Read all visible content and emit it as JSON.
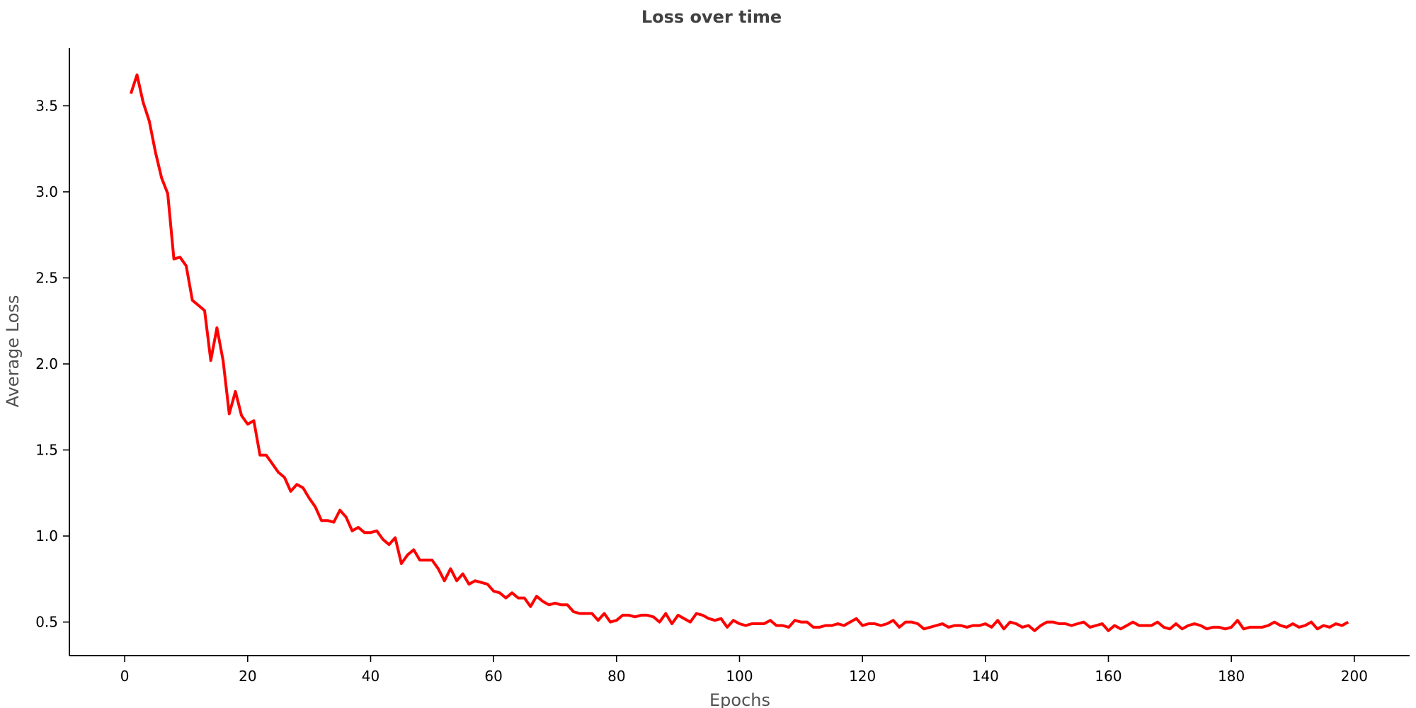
{
  "chart_data": {
    "type": "line",
    "title": "Loss over time",
    "xlabel": "Epochs",
    "ylabel": "Average Loss",
    "xlim": [
      -9,
      209
    ],
    "ylim": [
      0.305,
      3.835
    ],
    "xticks": [
      0,
      20,
      40,
      60,
      80,
      100,
      120,
      140,
      160,
      180,
      200
    ],
    "xtick_labels": [
      "0",
      "20",
      "40",
      "60",
      "80",
      "100",
      "120",
      "140",
      "160",
      "180",
      "200"
    ],
    "yticks": [
      0.5,
      1.0,
      1.5,
      2.0,
      2.5,
      3.0,
      3.5
    ],
    "ytick_labels": [
      "0.5",
      "1.0",
      "1.5",
      "2.0",
      "2.5",
      "3.0",
      "3.5"
    ],
    "grid": false,
    "line_color": "#ff0000",
    "series": [
      {
        "x": [
          1,
          2,
          3,
          4,
          5,
          6,
          7,
          8,
          9,
          10,
          11,
          12,
          13,
          14,
          15,
          16,
          17,
          18,
          19,
          20,
          21,
          22,
          23,
          24,
          25,
          26,
          27,
          28,
          29,
          30,
          31,
          32,
          33,
          34,
          35,
          36,
          37,
          38,
          39,
          40,
          41,
          42,
          43,
          44,
          45,
          46,
          47,
          48,
          49,
          50,
          51,
          52,
          53,
          54,
          55,
          56,
          57,
          58,
          59,
          60,
          61,
          62,
          63,
          64,
          65,
          66,
          67,
          68,
          69,
          70,
          71,
          72,
          73,
          74,
          75,
          76,
          77,
          78,
          79,
          80,
          81,
          82,
          83,
          84,
          85,
          86,
          87,
          88,
          89,
          90,
          91,
          92,
          93,
          94,
          95,
          96,
          97,
          98,
          99,
          100,
          101,
          102,
          103,
          104,
          105,
          106,
          107,
          108,
          109,
          110,
          111,
          112,
          113,
          114,
          115,
          116,
          117,
          118,
          119,
          120,
          121,
          122,
          123,
          124,
          125,
          126,
          127,
          128,
          129,
          130,
          131,
          132,
          133,
          134,
          135,
          136,
          137,
          138,
          139,
          140,
          141,
          142,
          143,
          144,
          145,
          146,
          147,
          148,
          149,
          150,
          151,
          152,
          153,
          154,
          155,
          156,
          157,
          158,
          159,
          160,
          161,
          162,
          163,
          164,
          165,
          166,
          167,
          168,
          169,
          170,
          171,
          172,
          173,
          174,
          175,
          176,
          177,
          178,
          179,
          180,
          181,
          182,
          183,
          184,
          185,
          186,
          187,
          188,
          189,
          190,
          191,
          192,
          193,
          194,
          195,
          196,
          197,
          198,
          199
        ],
        "values": [
          3.57,
          3.68,
          3.52,
          3.41,
          3.23,
          3.08,
          2.99,
          2.61,
          2.62,
          2.57,
          2.37,
          2.34,
          2.31,
          2.02,
          2.21,
          2.02,
          1.71,
          1.84,
          1.7,
          1.65,
          1.67,
          1.47,
          1.47,
          1.42,
          1.37,
          1.34,
          1.26,
          1.3,
          1.28,
          1.22,
          1.17,
          1.09,
          1.09,
          1.08,
          1.15,
          1.11,
          1.03,
          1.05,
          1.02,
          1.02,
          1.03,
          0.98,
          0.95,
          0.99,
          0.84,
          0.89,
          0.92,
          0.86,
          0.86,
          0.86,
          0.81,
          0.74,
          0.81,
          0.74,
          0.78,
          0.72,
          0.74,
          0.73,
          0.72,
          0.68,
          0.67,
          0.64,
          0.67,
          0.64,
          0.64,
          0.59,
          0.65,
          0.62,
          0.6,
          0.61,
          0.6,
          0.6,
          0.56,
          0.55,
          0.55,
          0.55,
          0.51,
          0.55,
          0.5,
          0.51,
          0.54,
          0.54,
          0.53,
          0.54,
          0.54,
          0.53,
          0.5,
          0.55,
          0.49,
          0.54,
          0.52,
          0.5,
          0.55,
          0.54,
          0.52,
          0.51,
          0.52,
          0.47,
          0.51,
          0.49,
          0.48,
          0.49,
          0.49,
          0.49,
          0.51,
          0.48,
          0.48,
          0.47,
          0.51,
          0.5,
          0.5,
          0.47,
          0.47,
          0.48,
          0.48,
          0.49,
          0.48,
          0.5,
          0.52,
          0.48,
          0.49,
          0.49,
          0.48,
          0.49,
          0.51,
          0.47,
          0.5,
          0.5,
          0.49,
          0.46,
          0.47,
          0.48,
          0.49,
          0.47,
          0.48,
          0.48,
          0.47,
          0.48,
          0.48,
          0.49,
          0.47,
          0.51,
          0.46,
          0.5,
          0.49,
          0.47,
          0.48,
          0.45,
          0.48,
          0.5,
          0.5,
          0.49,
          0.49,
          0.48,
          0.49,
          0.5,
          0.47,
          0.48,
          0.49,
          0.45,
          0.48,
          0.46,
          0.48,
          0.5,
          0.48,
          0.48,
          0.48,
          0.5,
          0.47,
          0.46,
          0.49,
          0.46,
          0.48,
          0.49,
          0.48,
          0.46,
          0.47,
          0.47,
          0.46,
          0.47,
          0.51,
          0.46,
          0.47,
          0.47,
          0.47,
          0.48,
          0.5,
          0.48,
          0.47,
          0.49,
          0.47,
          0.48,
          0.5,
          0.46,
          0.48,
          0.47,
          0.49,
          0.48,
          0.5
        ]
      }
    ]
  }
}
